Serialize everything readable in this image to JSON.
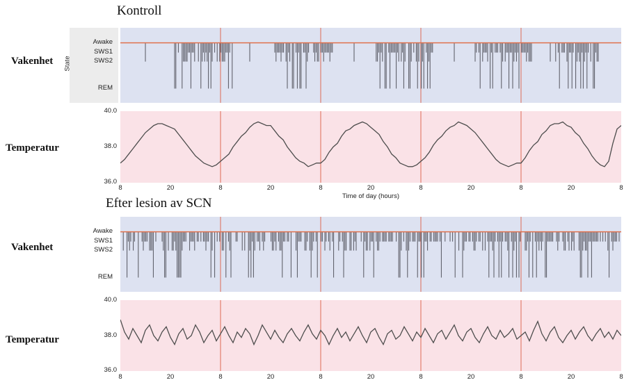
{
  "titles": {
    "control": "Kontroll",
    "lesion": "Efter lesion av SCN"
  },
  "row_labels": {
    "wakefulness": "Vakenhet",
    "temperature": "Temperatur"
  },
  "colors": {
    "hypnogram_bg": "#dde2f1",
    "temperature_bg": "#fae2e7",
    "day_line": "#dd6a55",
    "awake_line": "#e0714d",
    "bar": "#55555f",
    "trace": "#4d4d4d",
    "text": "#1a1a1a"
  },
  "chart_data": [
    {
      "id": "control_hypnogram",
      "type": "hypnogram",
      "group": "Kontroll",
      "ylabel": "State",
      "states": [
        "Awake",
        "SWS1",
        "SWS2",
        "REM"
      ],
      "x_range_hours": [
        0,
        120
      ],
      "day_boundary_lines_hours": [
        24,
        48,
        72,
        96
      ],
      "awake_baseline": true,
      "sleep_windows_hours": [
        [
          13,
          27
        ],
        [
          37,
          51
        ],
        [
          61,
          75
        ],
        [
          85,
          99
        ],
        [
          104,
          115
        ]
      ],
      "stray_bars_hours": [
        6,
        31,
        56,
        80,
        103
      ],
      "bar_interval_hours": 0.3,
      "gap_probability": 0.18,
      "state_probabilities": {
        "SWS1": 0.45,
        "SWS2": 0.35,
        "REM": 0.2
      },
      "seed": 7,
      "pattern_note": "sleep episodes clustered once per 24 h cycle"
    },
    {
      "id": "control_temperature",
      "type": "line",
      "group": "Kontroll",
      "xlabel": "Time of day (hours)",
      "x_ticks": [
        "8",
        "20",
        "8",
        "20",
        "8",
        "20",
        "8",
        "20",
        "8",
        "20",
        "8"
      ],
      "y_ticks": [
        "40.0",
        "38.0",
        "36.0"
      ],
      "ylim": [
        36.0,
        40.0
      ],
      "x_range_hours": [
        0,
        120
      ],
      "x_step_hours": 1,
      "day_boundary_lines_hours": [
        24,
        48,
        72,
        96
      ],
      "values": [
        37.1,
        37.3,
        37.6,
        37.9,
        38.2,
        38.5,
        38.8,
        39.0,
        39.2,
        39.3,
        39.3,
        39.2,
        39.1,
        39.0,
        38.7,
        38.4,
        38.1,
        37.8,
        37.5,
        37.3,
        37.1,
        37.0,
        36.9,
        37.0,
        37.2,
        37.4,
        37.6,
        38.0,
        38.3,
        38.6,
        38.8,
        39.1,
        39.3,
        39.4,
        39.3,
        39.2,
        39.2,
        38.9,
        38.6,
        38.4,
        38.0,
        37.7,
        37.4,
        37.2,
        37.1,
        36.9,
        37.0,
        37.1,
        37.1,
        37.3,
        37.7,
        38.0,
        38.2,
        38.6,
        38.9,
        39.0,
        39.2,
        39.3,
        39.4,
        39.3,
        39.1,
        38.9,
        38.7,
        38.3,
        38.0,
        37.6,
        37.4,
        37.1,
        37.0,
        36.9,
        36.9,
        37.0,
        37.2,
        37.4,
        37.7,
        38.1,
        38.4,
        38.6,
        38.9,
        39.1,
        39.2,
        39.4,
        39.3,
        39.2,
        39.0,
        38.8,
        38.5,
        38.2,
        37.9,
        37.6,
        37.3,
        37.1,
        37.0,
        36.9,
        37.0,
        37.1,
        37.1,
        37.4,
        37.8,
        38.1,
        38.3,
        38.7,
        38.9,
        39.2,
        39.3,
        39.3,
        39.4,
        39.2,
        39.1,
        38.8,
        38.6,
        38.2,
        37.9,
        37.5,
        37.2,
        37.0,
        36.9,
        37.2,
        38.2,
        39.0,
        39.2
      ]
    },
    {
      "id": "lesion_hypnogram",
      "type": "hypnogram",
      "group": "Efter lesion av SCN",
      "ylabel": "",
      "states": [
        "Awake",
        "SWS1",
        "SWS2",
        "REM"
      ],
      "x_range_hours": [
        0,
        120
      ],
      "day_boundary_lines_hours": [
        24,
        48,
        72,
        96
      ],
      "awake_baseline": true,
      "sleep_windows_hours": [
        [
          0.4,
          119.6
        ]
      ],
      "stray_bars_hours": [],
      "bar_interval_hours": 0.3,
      "gap_probability": 0.28,
      "state_probabilities": {
        "SWS1": 0.52,
        "SWS2": 0.3,
        "REM": 0.18
      },
      "seed": 13,
      "pattern_note": "sleep episodes distributed evenly across all hours"
    },
    {
      "id": "lesion_temperature",
      "type": "line",
      "group": "Efter lesion av SCN",
      "x_ticks": [
        "8",
        "20",
        "8",
        "20",
        "8",
        "20",
        "8",
        "20",
        "8",
        "20",
        "8"
      ],
      "y_ticks": [
        "40.0",
        "38.0",
        "36.0"
      ],
      "ylim": [
        36.0,
        40.0
      ],
      "x_range_hours": [
        0,
        120
      ],
      "x_step_hours": 1,
      "day_boundary_lines_hours": [
        24,
        48,
        72,
        96
      ],
      "values": [
        38.9,
        38.2,
        37.8,
        38.4,
        38.0,
        37.6,
        38.3,
        38.6,
        38.0,
        37.7,
        38.2,
        38.5,
        37.9,
        37.5,
        38.1,
        38.4,
        37.8,
        38.0,
        38.6,
        38.2,
        37.6,
        38.0,
        38.3,
        37.7,
        38.1,
        38.5,
        38.0,
        37.6,
        38.2,
        37.9,
        38.4,
        38.1,
        37.5,
        38.0,
        38.6,
        38.2,
        37.8,
        38.3,
        37.9,
        37.6,
        38.1,
        38.4,
        38.0,
        37.7,
        38.2,
        38.6,
        38.1,
        37.8,
        38.3,
        38.0,
        37.5,
        38.0,
        38.4,
        37.9,
        38.2,
        37.7,
        38.1,
        38.5,
        38.0,
        37.6,
        38.2,
        38.4,
        37.9,
        37.5,
        38.1,
        38.3,
        37.8,
        38.0,
        38.5,
        38.1,
        37.7,
        38.2,
        37.9,
        38.4,
        38.0,
        37.6,
        38.1,
        38.3,
        37.8,
        38.2,
        38.6,
        38.0,
        37.7,
        38.2,
        38.4,
        37.9,
        37.6,
        38.1,
        38.5,
        38.0,
        37.8,
        38.3,
        37.9,
        38.1,
        38.4,
        37.8,
        38.0,
        38.2,
        37.7,
        38.3,
        38.8,
        38.1,
        37.7,
        38.2,
        38.5,
        37.9,
        37.6,
        38.0,
        38.3,
        37.8,
        38.2,
        38.5,
        38.0,
        37.7,
        38.1,
        38.4,
        37.9,
        38.2,
        37.8,
        38.3,
        38.0
      ]
    }
  ]
}
